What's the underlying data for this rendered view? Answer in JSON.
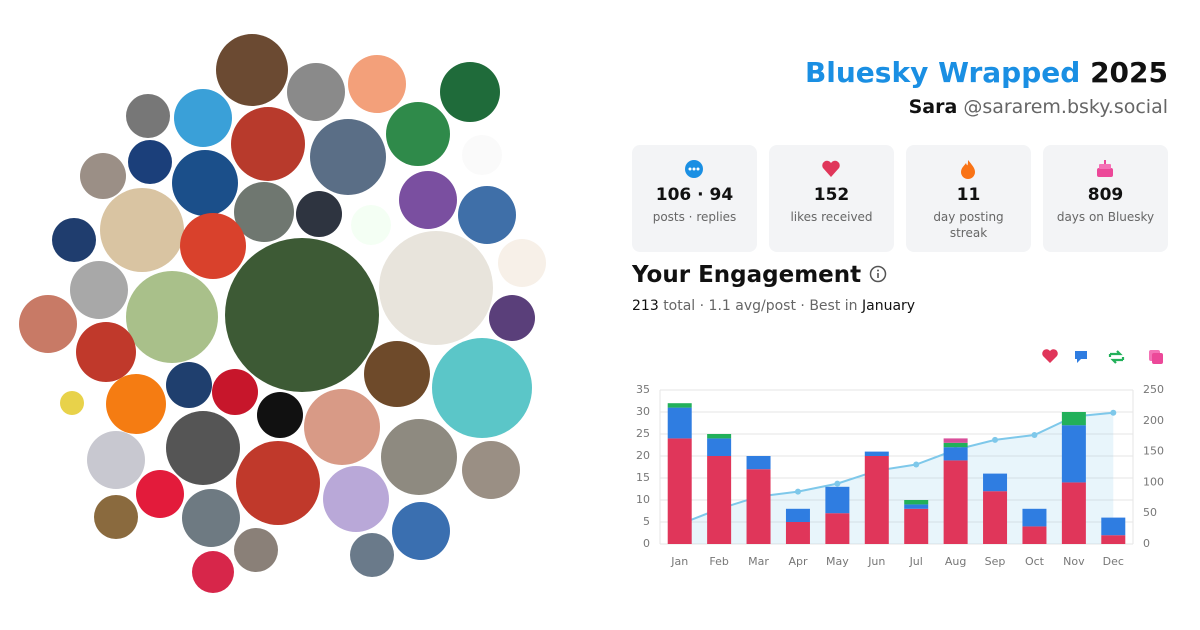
{
  "header": {
    "title": "Bluesky Wrapped",
    "year": "2025",
    "name": "Sara",
    "handle": "@sararem.bsky.social"
  },
  "stats": [
    {
      "value": "106 · 94",
      "label": "posts · replies"
    },
    {
      "value": "152",
      "label": "likes received"
    },
    {
      "value": "11",
      "label": "day posting streak"
    },
    {
      "value": "809",
      "label": "days on Bluesky"
    }
  ],
  "engagement": {
    "title": "Your Engagement",
    "total": "213",
    "summary": "total · 1.1 avg/post · Best in",
    "best": "January"
  },
  "chart_data": {
    "type": "bar",
    "stacked": true,
    "grid": true,
    "categories": [
      "Jan",
      "Feb",
      "Mar",
      "Apr",
      "May",
      "Jun",
      "Jul",
      "Aug",
      "Sep",
      "Oct",
      "Nov",
      "Dec"
    ],
    "series": [
      {
        "color": "#e0365a",
        "values": [
          24,
          20,
          17,
          5,
          7,
          20,
          8,
          19,
          12,
          4,
          14,
          2
        ]
      },
      {
        "color": "#2f7de1",
        "values": [
          7,
          4,
          3,
          3,
          6,
          1,
          1,
          3,
          4,
          4,
          13,
          4
        ]
      },
      {
        "color": "#22b05a",
        "values": [
          1,
          1,
          0,
          0,
          0,
          0,
          1,
          1,
          0,
          0,
          3,
          0
        ]
      },
      {
        "color": "#d94f9a",
        "values": [
          0,
          0,
          0,
          0,
          0,
          0,
          0,
          1,
          0,
          0,
          0,
          0
        ]
      },
      {
        "type": "line",
        "axis": "y2",
        "color": "#7ec8ea",
        "values": [
          32,
          57,
          77,
          85,
          98,
          119,
          129,
          153,
          169,
          177,
          207,
          213
        ]
      }
    ],
    "ylim": [
      0,
      35
    ],
    "yticks": [
      0,
      5,
      10,
      15,
      20,
      25,
      30,
      35
    ],
    "y2lim": [
      0,
      250
    ],
    "y2ticks": [
      0,
      50,
      100,
      150,
      200,
      250
    ]
  }
}
